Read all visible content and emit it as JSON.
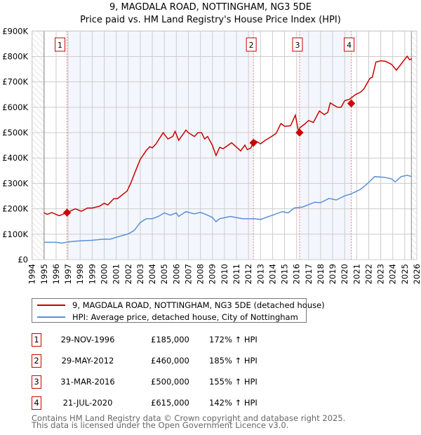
{
  "chart_data": {
    "type": "line",
    "title": "9, MAGDALA ROAD, NOTTINGHAM, NG3 5DE",
    "subtitle": "Price paid vs. HM Land Registry's House Price Index (HPI)",
    "xlim": [
      1994,
      2026
    ],
    "ylim": [
      0,
      900000
    ],
    "y_ticks": [
      {
        "v": 0,
        "label": "£0"
      },
      {
        "v": 100000,
        "label": "£100K"
      },
      {
        "v": 200000,
        "label": "£200K"
      },
      {
        "v": 300000,
        "label": "£300K"
      },
      {
        "v": 400000,
        "label": "£400K"
      },
      {
        "v": 500000,
        "label": "£500K"
      },
      {
        "v": 600000,
        "label": "£600K"
      },
      {
        "v": 700000,
        "label": "£700K"
      },
      {
        "v": 800000,
        "label": "£800K"
      },
      {
        "v": 900000,
        "label": "£900K"
      }
    ],
    "x_ticks": [
      "1994",
      "1995",
      "1996",
      "1997",
      "1998",
      "1999",
      "2000",
      "2001",
      "2002",
      "2003",
      "2004",
      "2005",
      "2006",
      "2007",
      "2008",
      "2009",
      "2010",
      "2011",
      "2012",
      "2013",
      "2014",
      "2015",
      "2016",
      "2017",
      "2018",
      "2019",
      "2020",
      "2021",
      "2022",
      "2023",
      "2024",
      "2025",
      "2026"
    ],
    "grid": true,
    "series": [
      {
        "name": "9, MAGDALA ROAD, NOTTINGHAM, NG3 5DE (detached house)",
        "color": "#cc0000",
        "x": [
          1995,
          1995.25,
          1995.65,
          1996.25,
          1996.9,
          1997.6,
          1998.1,
          1998.6,
          1999.0,
          1999.6,
          2000.0,
          2000.3,
          2000.8,
          2001.1,
          2001.9,
          2002.2,
          2002.7,
          2003.0,
          2003.5,
          2003.8,
          2004.0,
          2004.3,
          2004.9,
          2005.3,
          2005.7,
          2005.9,
          2006.2,
          2006.5,
          2006.8,
          2007.0,
          2007.5,
          2007.8,
          2008.1,
          2008.35,
          2008.6,
          2009.0,
          2009.3,
          2009.6,
          2009.9,
          2010.6,
          2011.35,
          2011.7,
          2011.9,
          2012.2,
          2012.5,
          2013.0,
          2013.4,
          2013.9,
          2014.3,
          2014.7,
          2015.0,
          2015.5,
          2015.9,
          2016.15,
          2016.3,
          2016.7,
          2017.0,
          2017.4,
          2017.9,
          2018.3,
          2018.6,
          2018.8,
          2019.4,
          2019.7,
          2020.0,
          2020.4,
          2020.9,
          2021.3,
          2021.6,
          2022.1,
          2022.3,
          2022.6,
          2023.0,
          2023.4,
          2023.9,
          2024.3,
          2024.6,
          2024.9,
          2025.2,
          2025.4,
          2025.6
        ],
        "y": [
          185000,
          178000,
          185000,
          173000,
          185000,
          200000,
          190000,
          203000,
          203000,
          210000,
          222000,
          215000,
          240000,
          240000,
          270000,
          300000,
          360000,
          395000,
          430000,
          445000,
          440000,
          455000,
          500000,
          475000,
          485000,
          505000,
          470000,
          490000,
          510000,
          500000,
          485000,
          500000,
          500000,
          475000,
          485000,
          450000,
          410000,
          442000,
          437000,
          460000,
          428000,
          451000,
          433000,
          440000,
          470000,
          456000,
          470000,
          484000,
          497000,
          536000,
          525000,
          527000,
          569000,
          507000,
          520000,
          535000,
          548000,
          540000,
          585000,
          571000,
          580000,
          617000,
          600000,
          600000,
          626000,
          631000,
          650000,
          659000,
          672000,
          714000,
          718000,
          778000,
          783000,
          781000,
          769000,
          746000,
          764000,
          783000,
          801000,
          787000,
          792000
        ]
      },
      {
        "name": "HPI: Average price, detached house, City of Nottingham",
        "color": "#5b8fd6",
        "x": [
          1995,
          1996,
          1996.5,
          1997,
          1998,
          1999,
          2000,
          2000.5,
          2001,
          2002,
          2002.5,
          2003,
          2003.5,
          2004,
          2004.5,
          2005,
          2005.5,
          2006,
          2006.2,
          2006.8,
          2007.5,
          2008,
          2008.5,
          2009,
          2009.3,
          2009.6,
          2010.5,
          2011.5,
          2012.5,
          2013,
          2014,
          2014.8,
          2015.3,
          2015.8,
          2016.5,
          2017.5,
          2018,
          2018.7,
          2019.3,
          2020,
          2020.5,
          2021.3,
          2021.8,
          2022.5,
          2023.3,
          2023.9,
          2024.2,
          2024.7,
          2025.2,
          2025.6
        ],
        "y": [
          68000,
          68000,
          65000,
          70000,
          74000,
          76000,
          81000,
          80000,
          88000,
          101000,
          115000,
          146000,
          161000,
          161000,
          170000,
          184000,
          175000,
          184000,
          170000,
          189000,
          180000,
          186000,
          177000,
          166000,
          149000,
          161000,
          170000,
          161000,
          161000,
          158000,
          175000,
          189000,
          184000,
          203000,
          207000,
          226000,
          224000,
          241000,
          235000,
          251000,
          258000,
          276000,
          295000,
          327000,
          324000,
          318000,
          306000,
          327000,
          332000,
          327000
        ]
      }
    ],
    "sales": [
      {
        "n": "1",
        "x": 1996.91,
        "y": 185000,
        "date": "29-NOV-1996",
        "price": "£185,000",
        "hpi": "172% ↑ HPI"
      },
      {
        "n": "2",
        "x": 2012.41,
        "y": 460000,
        "date": "29-MAY-2012",
        "price": "£460,000",
        "hpi": "185% ↑ HPI"
      },
      {
        "n": "3",
        "x": 2016.25,
        "y": 500000,
        "date": "31-MAR-2016",
        "price": "£500,000",
        "hpi": "155% ↑ HPI"
      },
      {
        "n": "4",
        "x": 2020.55,
        "y": 615000,
        "date": "21-JUL-2020",
        "price": "£615,000",
        "hpi": "142% ↑ HPI"
      }
    ],
    "legend_position": "below"
  },
  "footer": {
    "line1": "Contains HM Land Registry data © Crown copyright and database right 2025.",
    "line2": "This data is licensed under the Open Government Licence v3.0."
  }
}
